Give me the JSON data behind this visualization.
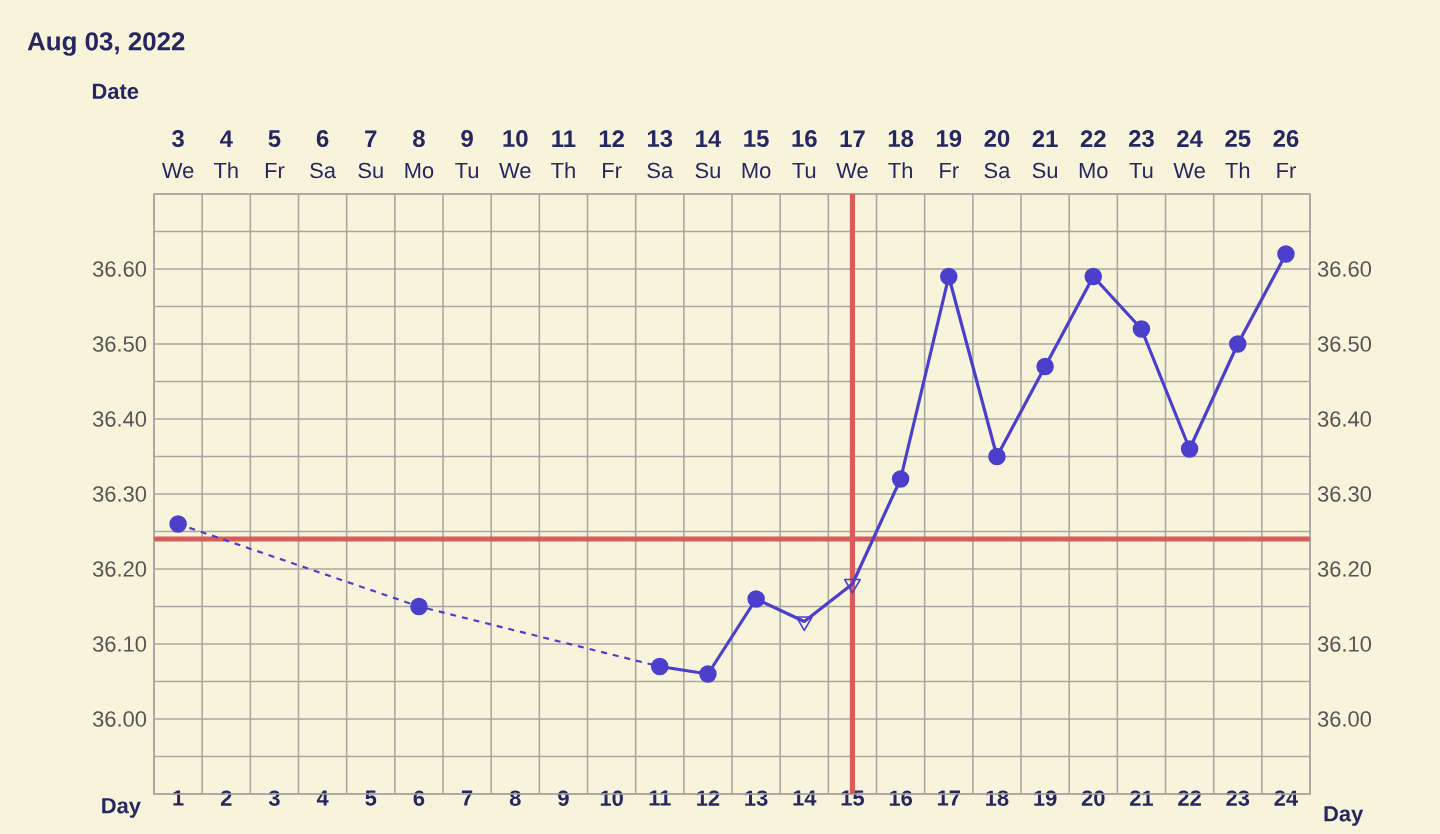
{
  "chart_data": {
    "type": "line",
    "title": "Aug 03, 2022",
    "xlabel": "Day",
    "x2label": "Date",
    "xlim": [
      0.5,
      24.5
    ],
    "xticks": [
      {
        "value": 0.5,
        "label": null
      },
      1,
      {
        "value": 1.5,
        "label": null
      },
      2,
      {
        "value": 2.5,
        "label": null
      },
      3,
      {
        "value": 3.5,
        "label": null
      },
      4,
      {
        "value": 4.5,
        "label": null
      },
      5,
      {
        "value": 5.5,
        "label": null
      },
      6,
      {
        "value": 6.5,
        "label": null
      },
      7,
      {
        "value": 7.5,
        "label": null
      },
      8,
      {
        "value": 8.5,
        "label": null
      },
      9,
      {
        "value": 9.5,
        "label": null
      },
      10,
      {
        "value": 10.5,
        "label": null
      },
      11,
      {
        "value": 11.5,
        "label": null
      },
      12,
      {
        "value": 12.5,
        "label": null
      },
      13,
      {
        "value": 13.5,
        "label": null
      },
      14,
      {
        "value": 14.5,
        "label": null
      },
      15,
      {
        "value": 15.5,
        "label": null
      },
      16,
      {
        "value": 16.5,
        "label": null
      },
      17,
      {
        "value": 17.5,
        "label": null
      },
      18,
      {
        "value": 18.5,
        "label": null
      },
      19,
      {
        "value": 19.5,
        "label": null
      },
      20,
      {
        "value": 20.5,
        "label": null
      },
      21,
      {
        "value": 21.5,
        "label": null
      },
      22,
      {
        "value": 22.5,
        "label": null
      },
      23,
      {
        "value": 23.5,
        "label": null
      },
      24,
      {
        "value": 24.5,
        "label": null
      }
    ],
    "x2lim": [
      2.5,
      26.5
    ],
    "x2ticks": [
      3,
      4,
      5,
      6,
      7,
      8,
      9,
      10,
      11,
      12,
      13,
      14,
      15,
      16,
      17,
      18,
      19,
      20,
      21,
      22,
      23,
      24,
      25,
      26
    ],
    "annotations": [
      "We",
      "Th",
      "Fr",
      "Sa",
      "Su",
      "Mo",
      "Tu",
      "We",
      "Th",
      "Fr",
      "Sa",
      "Su",
      "Mo",
      "Tu",
      "We",
      "Th",
      "Fr",
      "Sa",
      "Su",
      "Mo",
      "Tu",
      "We",
      "Th",
      "Fr"
    ],
    "ylim": [
      35.9,
      36.7
    ],
    "yticks": [
      {
        "value": 35.9,
        "label": null
      },
      {
        "value": 35.95,
        "label": null
      },
      {
        "value": 36.0,
        "label": "36.00"
      },
      {
        "value": 36.05,
        "label": null
      },
      {
        "value": 36.1,
        "label": "36.10"
      },
      {
        "value": 36.15,
        "label": null
      },
      {
        "value": 36.2,
        "label": "36.20"
      },
      {
        "value": 36.25,
        "label": null
      },
      {
        "value": 36.3,
        "label": "36.30"
      },
      {
        "value": 36.35,
        "label": null
      },
      {
        "value": 36.4,
        "label": "36.40"
      },
      {
        "value": 36.45,
        "label": null
      },
      {
        "value": 36.5,
        "label": "36.50"
      },
      {
        "value": 36.55,
        "label": null
      },
      {
        "value": 36.6,
        "label": "36.60"
      },
      {
        "value": 36.65,
        "label": null
      },
      {
        "value": 36.7,
        "label": null
      }
    ],
    "y2lim": [
      35.9,
      36.7
    ],
    "y2ticks": [
      {
        "value": 35.9,
        "label": null
      },
      {
        "value": 35.95,
        "label": null
      },
      {
        "value": 36.0,
        "label": "36.00"
      },
      {
        "value": 36.05,
        "label": null
      },
      {
        "value": 36.1,
        "label": "36.10"
      },
      {
        "value": 36.15,
        "label": null
      },
      {
        "value": 36.2,
        "label": "36.20"
      },
      {
        "value": 36.25,
        "label": null
      },
      {
        "value": 36.3,
        "label": "36.30"
      },
      {
        "value": 36.35,
        "label": null
      },
      {
        "value": 36.4,
        "label": "36.40"
      },
      {
        "value": 36.45,
        "label": null
      },
      {
        "value": 36.5,
        "label": "36.50"
      },
      {
        "value": 36.55,
        "label": null
      },
      {
        "value": 36.6,
        "label": "36.60"
      },
      {
        "value": 36.65,
        "label": null
      },
      {
        "value": 36.7,
        "label": null
      }
    ],
    "grid": true,
    "ref_lines": [
      {
        "axis": "y",
        "value": 36.24,
        "color": "#d95c5c"
      },
      {
        "axis": "x",
        "value": 15,
        "color": "#d95c5c"
      }
    ],
    "series": [
      {
        "line_style": "dashed",
        "marker": "none",
        "color": "#4b3fcb",
        "x": [
          1,
          6,
          11
        ],
        "values": [
          36.26,
          36.15,
          36.07
        ]
      },
      {
        "type": "scatter",
        "marker": "circle",
        "color": "#4b3fcb",
        "x": [
          1,
          6
        ],
        "values": [
          36.26,
          36.15
        ]
      },
      {
        "line_style": "solid",
        "marker": "circle",
        "color": "#4b3fcb",
        "x": [
          11,
          12,
          13
        ],
        "values": [
          36.07,
          36.06,
          36.16
        ]
      },
      {
        "line_style": "solid",
        "marker": "none",
        "color": "#4b3fcb",
        "x": [
          13,
          14,
          15,
          16
        ],
        "values": [
          36.16,
          36.13,
          36.18,
          36.32
        ]
      },
      {
        "type": "scatter",
        "marker": "triangle",
        "color": "#4b3fcb",
        "x": [
          14,
          15
        ],
        "values": [
          36.13,
          36.18
        ]
      },
      {
        "line_style": "solid",
        "marker": "circle",
        "color": "#4b3fcb",
        "x": [
          16,
          17,
          18,
          19,
          20,
          21,
          22,
          23,
          24
        ],
        "values": [
          36.32,
          36.59,
          36.35,
          36.47,
          36.59,
          36.52,
          36.36,
          36.5,
          36.62
        ]
      }
    ]
  }
}
